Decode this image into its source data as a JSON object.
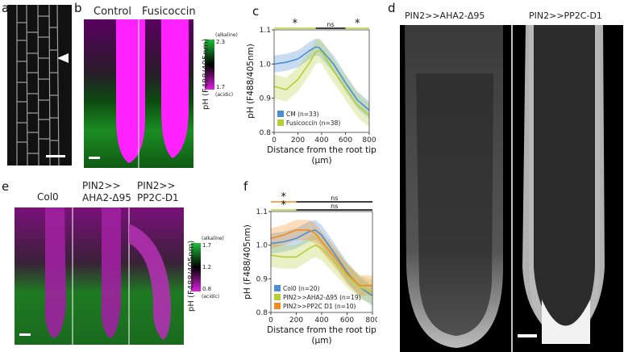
{
  "panel_labels": {
    "a": "a",
    "b": "b",
    "c": "c",
    "d": "d",
    "e": "e",
    "f": "f"
  },
  "panel_b": {
    "headers": [
      "Control",
      "Fusicoccin"
    ],
    "colorbar": {
      "top": "(alkaline)",
      "max": "2.3",
      "min": "1.7",
      "bottom": "(acidic)",
      "axis": "pH (F488/405nm)"
    }
  },
  "panel_d": {
    "headers": [
      "PIN2>>AHA2-Δ95",
      "PIN2>>PP2C-D1"
    ]
  },
  "panel_e": {
    "headers": [
      "Col0",
      "PIN2>>\nAHA2-Δ95",
      "PIN2>>\nPP2C-D1"
    ],
    "colorbar": {
      "top": "(alkaline)",
      "max": "1.7",
      "mid": "1.2",
      "min": "0.8",
      "bottom": "(acidic)",
      "axis": "pH (F488/405nm)"
    }
  },
  "colors": {
    "alkaline": "#1fbf3a",
    "acidic": "#e020e0",
    "series_blue": "#4a8fd4",
    "series_green": "#b5cf3a",
    "series_orange": "#f28c1f"
  },
  "chart_data": [
    {
      "id": "c",
      "type": "line",
      "xlabel": "Distance from the root tip (µm)",
      "ylabel": "pH (F488/405nm)",
      "xlim": [
        0,
        800
      ],
      "ylim": [
        0.8,
        1.1
      ],
      "xticks": [
        "0",
        "200",
        "400",
        "600",
        "800"
      ],
      "yticks": [
        "0.8",
        "0.9",
        "1.0",
        "1.1"
      ],
      "x": [
        0,
        100,
        200,
        300,
        350,
        380,
        400,
        500,
        600,
        700,
        800
      ],
      "series": [
        {
          "name": "CM (n=33)",
          "color": "#4a8fd4",
          "values": [
            1.0,
            1.005,
            1.015,
            1.04,
            1.05,
            1.048,
            1.04,
            1.0,
            0.945,
            0.895,
            0.865
          ],
          "band": 0.025
        },
        {
          "name": "Fusicoccin (n=38)",
          "color": "#b5cf3a",
          "values": [
            0.935,
            0.925,
            0.955,
            1.005,
            1.035,
            1.04,
            1.035,
            0.98,
            0.93,
            0.88,
            0.85
          ],
          "band": 0.035
        }
      ],
      "significance": [
        {
          "from": 0,
          "to": 350,
          "label": "*",
          "color": "#b5cf3a"
        },
        {
          "from": 350,
          "to": 600,
          "label": "ns",
          "color": "#000000"
        },
        {
          "from": 600,
          "to": 800,
          "label": "*",
          "color": "#b5cf3a"
        }
      ],
      "legend": "bottom-left"
    },
    {
      "id": "f",
      "type": "line",
      "xlabel": "Distance from the root tip (µm)",
      "ylabel": "pH (F488/405nm)",
      "xlim": [
        0,
        800
      ],
      "ylim": [
        0.8,
        1.1
      ],
      "xticks": [
        "0",
        "200",
        "400",
        "600",
        "800"
      ],
      "yticks": [
        "0.8",
        "0.9",
        "1.0",
        "1.1"
      ],
      "x": [
        0,
        100,
        200,
        300,
        350,
        400,
        500,
        600,
        700,
        800
      ],
      "series": [
        {
          "name": "Col0 (n=20)",
          "color": "#4a8fd4",
          "values": [
            1.005,
            1.01,
            1.02,
            1.04,
            1.045,
            1.03,
            0.975,
            0.92,
            0.875,
            0.85
          ],
          "band": 0.03
        },
        {
          "name": "PIN2>>AHA2-Δ95 (n=19)",
          "color": "#b5cf3a",
          "values": [
            0.97,
            0.965,
            0.965,
            0.99,
            1.0,
            0.99,
            0.95,
            0.91,
            0.875,
            0.86
          ],
          "band": 0.035
        },
        {
          "name": "PIN2>>PP2C D1 (n=10)",
          "color": "#f28c1f",
          "values": [
            1.02,
            1.03,
            1.045,
            1.045,
            1.035,
            1.01,
            0.965,
            0.915,
            0.88,
            0.88
          ],
          "band": 0.03
        }
      ],
      "significance": [
        {
          "from": 0,
          "to": 200,
          "label": "*",
          "color": "#f28c1f",
          "row": 0
        },
        {
          "from": 200,
          "to": 800,
          "label": "ns",
          "color": "#000000",
          "row": 0
        },
        {
          "from": 0,
          "to": 200,
          "label": "*",
          "color": "#b5cf3a",
          "row": 1
        },
        {
          "from": 200,
          "to": 800,
          "label": "ns",
          "color": "#000000",
          "row": 1
        }
      ],
      "legend": "bottom-left"
    }
  ]
}
